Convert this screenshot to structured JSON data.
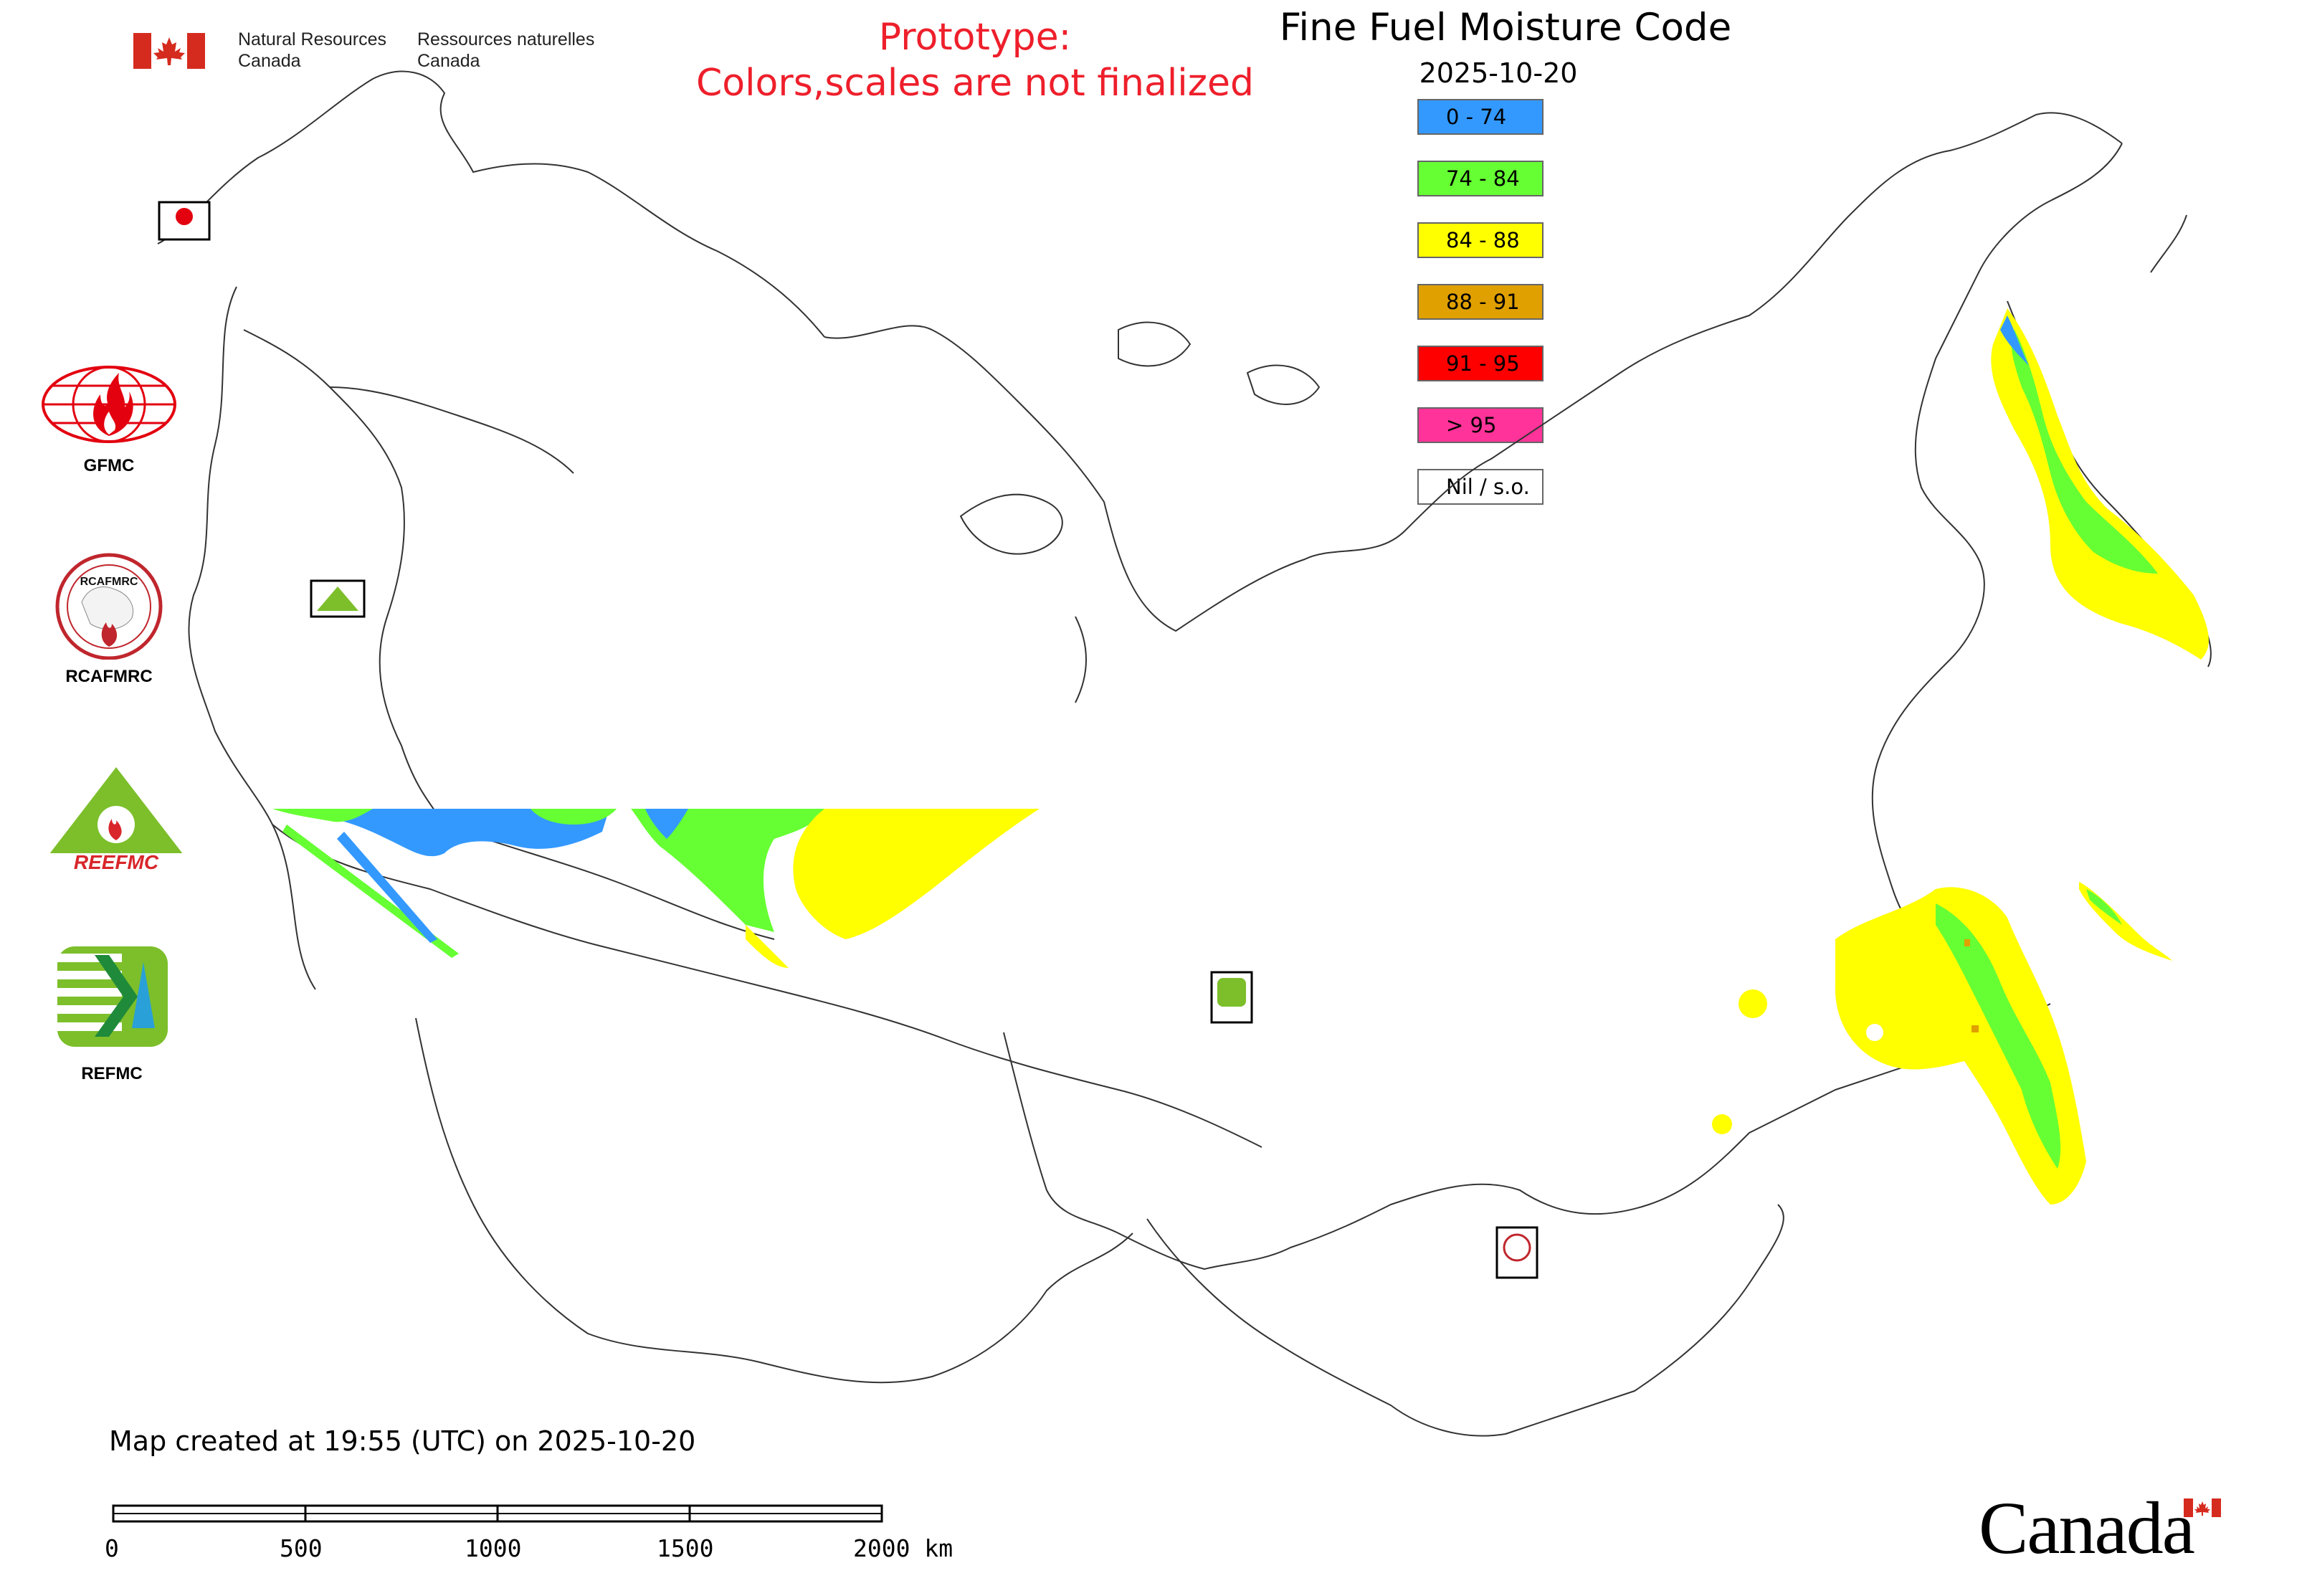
{
  "header": {
    "agency_en_line1": "Natural Resources",
    "agency_en_line2": "Canada",
    "agency_fr_line1": "Ressources naturelles",
    "agency_fr_line2": "Canada",
    "prototype_line1": "Prototype:",
    "prototype_line2": "Colors,scales are not finalized",
    "title": "Fine Fuel Moisture Code",
    "date": "2025-10-20"
  },
  "legend": {
    "items": [
      {
        "label": "0 - 74",
        "color": "#3399ff"
      },
      {
        "label": "74 - 84",
        "color": "#66ff33"
      },
      {
        "label": "84 - 88",
        "color": "#ffff00"
      },
      {
        "label": "88 - 91",
        "color": "#e0a000"
      },
      {
        "label": "91 - 95",
        "color": "#ff0000"
      },
      {
        "label": "> 95",
        "color": "#ff3399"
      },
      {
        "label": "Nil / s.o.",
        "color": "#ffffff"
      }
    ]
  },
  "logos": [
    {
      "label": "GFMC",
      "icon": "gfmc-logo-icon"
    },
    {
      "label": "RCAFMRC",
      "icon": "rcafmrc-logo-icon"
    },
    {
      "label": "REFMC",
      "icon": "refmc-logo-icon"
    }
  ],
  "logo_wordmarks": {
    "rcafmrc": "RCAFMRC",
    "reefmc": "REEFMC"
  },
  "footer": {
    "created": "Map created at 19:55 (UTC) on 2025-10-20",
    "scale_labels": [
      "0",
      "500",
      "1000",
      "1500",
      "2000 km"
    ],
    "wordmark": "Canada"
  },
  "colors": {
    "prototype_text": "#ee1f2b",
    "border_lines": "#333333",
    "flag_red": "#d52b1e"
  }
}
